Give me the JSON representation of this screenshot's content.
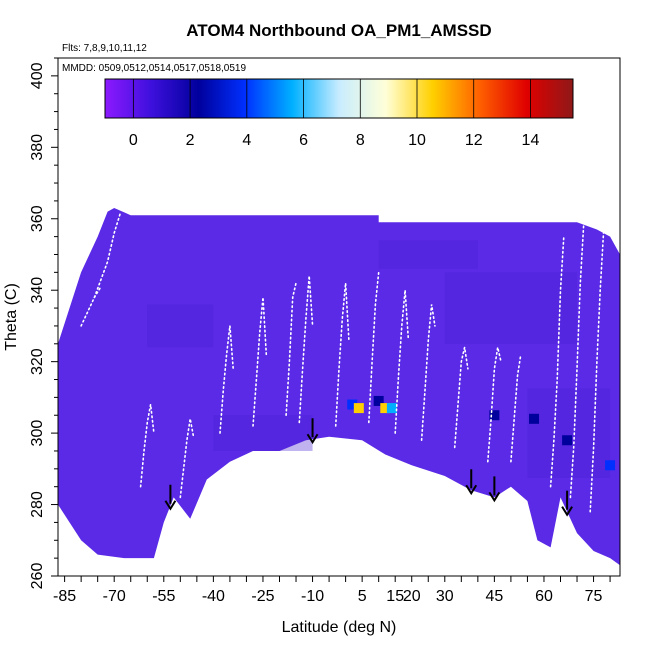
{
  "chart_data": {
    "type": "heatmap",
    "title": "ATOM4 Northbound OA_PM1_AMSSD",
    "annotations": {
      "flights": "Flts: 7,8,9,10,11,12",
      "dates": "MMDD: 0509,0512,0514,0517,0518,0519"
    },
    "xlabel": "Latitude (deg N)",
    "ylabel": "Theta (C)",
    "xlim": [
      -87,
      83
    ],
    "ylim": [
      260,
      405
    ],
    "x_ticks": [
      -85,
      -70,
      -55,
      -40,
      -25,
      -10,
      5,
      15,
      20,
      30,
      45,
      60,
      75
    ],
    "x_tick_labels": [
      "-85",
      "-70",
      "-55",
      "-40",
      "-25",
      "-10",
      "5",
      "15",
      "20",
      "30",
      "45",
      "60",
      "75"
    ],
    "y_ticks": [
      260,
      280,
      300,
      320,
      340,
      360,
      380,
      400
    ],
    "colorbar": {
      "range": [
        -1,
        15.5
      ],
      "ticks": [
        0,
        2,
        4,
        6,
        8,
        10,
        12,
        14
      ],
      "tick_labels": [
        "0",
        "2",
        "4",
        "6",
        "8",
        "10",
        "12",
        "14"
      ],
      "colors": [
        "#8c1aff",
        "#3d10dc",
        "#00009c",
        "#0030ff",
        "#00b0ff",
        "#c8ecff",
        "#ffffd8",
        "#ffd000",
        "#ff6000",
        "#e00000",
        "#901818"
      ]
    },
    "field": {
      "background_color": "#5a2ae6",
      "upper_boundary": [
        [
          -87,
          325
        ],
        [
          -80,
          345
        ],
        [
          -75,
          355
        ],
        [
          -72,
          362
        ],
        [
          -70,
          363
        ],
        [
          -65,
          361
        ],
        [
          -60,
          361
        ],
        [
          -10,
          361
        ],
        [
          5,
          361
        ],
        [
          10,
          361
        ],
        [
          10,
          359
        ],
        [
          60,
          359
        ],
        [
          70,
          359
        ],
        [
          76,
          357
        ],
        [
          80,
          355
        ],
        [
          83,
          350
        ]
      ],
      "lower_boundary": [
        [
          -87,
          280
        ],
        [
          -80,
          270
        ],
        [
          -75,
          266
        ],
        [
          -67,
          265
        ],
        [
          -58,
          265
        ],
        [
          -55,
          275
        ],
        [
          -52,
          282
        ],
        [
          -47,
          276
        ],
        [
          -42,
          287
        ],
        [
          -35,
          292
        ],
        [
          -28,
          295
        ],
        [
          -20,
          295
        ],
        [
          -12,
          298
        ],
        [
          -5,
          299
        ],
        [
          5,
          298
        ],
        [
          12,
          294
        ],
        [
          20,
          291
        ],
        [
          30,
          288
        ],
        [
          38,
          284
        ],
        [
          45,
          282
        ],
        [
          50,
          285
        ],
        [
          55,
          281
        ],
        [
          58,
          270
        ],
        [
          62,
          268
        ],
        [
          65,
          282
        ],
        [
          70,
          272
        ],
        [
          75,
          267
        ],
        [
          80,
          265
        ],
        [
          83,
          263
        ]
      ],
      "hotspots": [
        {
          "lat": 2,
          "theta": 308,
          "value": 4
        },
        {
          "lat": 4,
          "theta": 307,
          "value": 11
        },
        {
          "lat": 10,
          "theta": 309,
          "value": 3
        },
        {
          "lat": 12,
          "theta": 307,
          "value": 11
        },
        {
          "lat": 14,
          "theta": 307,
          "value": 6
        },
        {
          "lat": 45,
          "theta": 305,
          "value": 2
        },
        {
          "lat": 57,
          "theta": 304,
          "value": 3
        },
        {
          "lat": 67,
          "theta": 298,
          "value": 3
        },
        {
          "lat": 80,
          "theta": 291,
          "value": 4
        }
      ]
    },
    "flight_tracks": [
      {
        "lat": [
          -76,
          -72,
          -70,
          -68
        ],
        "theta": [
          338,
          348,
          356,
          362
        ]
      },
      {
        "lat": [
          -80,
          -78,
          -76,
          -74
        ],
        "theta": [
          330,
          334,
          338,
          341
        ]
      },
      {
        "lat": [
          -62,
          -61,
          -60,
          -59,
          -58
        ],
        "theta": [
          285,
          295,
          303,
          308,
          300
        ]
      },
      {
        "lat": [
          -50,
          -49,
          -48,
          -47,
          -46
        ],
        "theta": [
          282,
          290,
          298,
          304,
          299
        ]
      },
      {
        "lat": [
          -38,
          -37,
          -36,
          -35,
          -34
        ],
        "theta": [
          300,
          312,
          322,
          330,
          318
        ]
      },
      {
        "lat": [
          -28,
          -27,
          -26,
          -25,
          -24
        ],
        "theta": [
          302,
          315,
          328,
          338,
          322
        ]
      },
      {
        "lat": [
          -18,
          -17,
          -16,
          -15
        ],
        "theta": [
          305,
          320,
          338,
          342
        ]
      },
      {
        "lat": [
          -14,
          -13,
          -12,
          -11,
          -10
        ],
        "theta": [
          303,
          318,
          332,
          344,
          330
        ]
      },
      {
        "lat": [
          -3,
          -2,
          -1,
          0,
          1
        ],
        "theta": [
          302,
          318,
          332,
          342,
          326
        ]
      },
      {
        "lat": [
          7,
          8,
          9,
          10
        ],
        "theta": [
          303,
          320,
          336,
          345
        ]
      },
      {
        "lat": [
          15,
          16,
          17,
          18,
          19
        ],
        "theta": [
          300,
          316,
          330,
          340,
          326
        ]
      },
      {
        "lat": [
          23,
          24,
          25,
          26,
          27
        ],
        "theta": [
          298,
          312,
          326,
          336,
          330
        ]
      },
      {
        "lat": [
          33,
          34,
          35,
          36,
          37
        ],
        "theta": [
          296,
          308,
          320,
          324,
          318
        ]
      },
      {
        "lat": [
          43,
          44,
          45,
          46,
          47
        ],
        "theta": [
          292,
          304,
          318,
          324,
          320
        ]
      },
      {
        "lat": [
          50,
          51,
          52,
          53
        ],
        "theta": [
          292,
          304,
          316,
          322
        ]
      },
      {
        "lat": [
          62,
          63,
          64,
          65,
          66
        ],
        "theta": [
          285,
          298,
          315,
          340,
          355
        ]
      },
      {
        "lat": [
          68,
          69,
          70,
          71,
          72
        ],
        "theta": [
          282,
          296,
          318,
          342,
          358
        ]
      },
      {
        "lat": [
          74,
          75,
          76,
          77,
          78
        ],
        "theta": [
          278,
          296,
          320,
          340,
          356
        ]
      }
    ],
    "arrows": [
      -53,
      -10,
      38,
      45,
      67
    ]
  }
}
